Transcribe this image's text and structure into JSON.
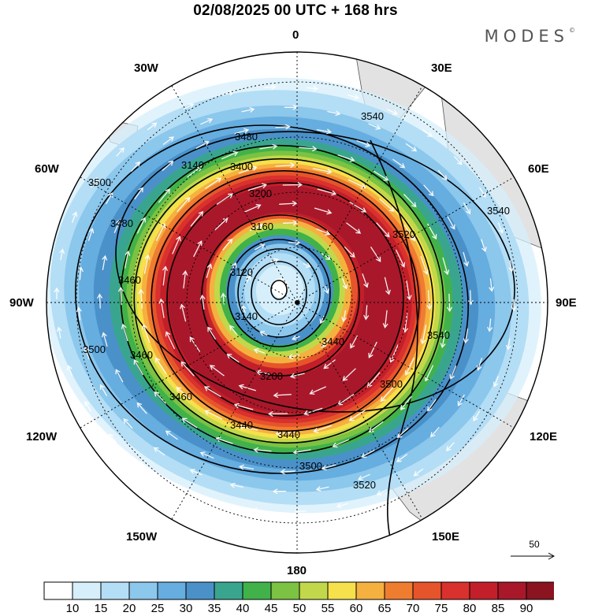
{
  "title": "02/08/2025  00 UTC  + 168 hrs",
  "brand": {
    "text": "MODES",
    "mark": "©"
  },
  "longitude_labels": {
    "top": "0",
    "top_right": "30E",
    "right_upper": "60E",
    "right": "90E",
    "right_lower": "120E",
    "bottom_right": "150E",
    "bottom": "180",
    "bottom_left": "150W",
    "left_lower": "120W",
    "left": "90W",
    "left_upper": "60W",
    "top_left": "30W"
  },
  "reference_vector": {
    "label": "50"
  },
  "colorbar": {
    "labels": [
      "10",
      "15",
      "20",
      "25",
      "30",
      "35",
      "40",
      "45",
      "50",
      "55",
      "60",
      "65",
      "70",
      "75",
      "80",
      "85",
      "90"
    ],
    "colors": [
      "#ffffff",
      "#d6effb",
      "#b4def5",
      "#8cc7ec",
      "#66ade0",
      "#4a91c9",
      "#3aa58f",
      "#41b24a",
      "#7cc243",
      "#c2d84a",
      "#f6e04b",
      "#f5b13f",
      "#ef7d30",
      "#e6542b",
      "#d9312d",
      "#c21f2a",
      "#a8182a",
      "#8a1420"
    ]
  },
  "contour_labels": [
    "3480",
    "3400",
    "3140",
    "3500",
    "3480",
    "3460",
    "3160",
    "3120",
    "3200",
    "3140",
    "3520",
    "3540",
    "3540",
    "3540",
    "3440",
    "3460",
    "3500",
    "3460",
    "3200",
    "3440",
    "3440",
    "3500",
    "3520",
    "3500"
  ],
  "colors": {
    "coast": "#d9d9d9",
    "contour": "#000000",
    "vector": "#ffffff"
  }
}
